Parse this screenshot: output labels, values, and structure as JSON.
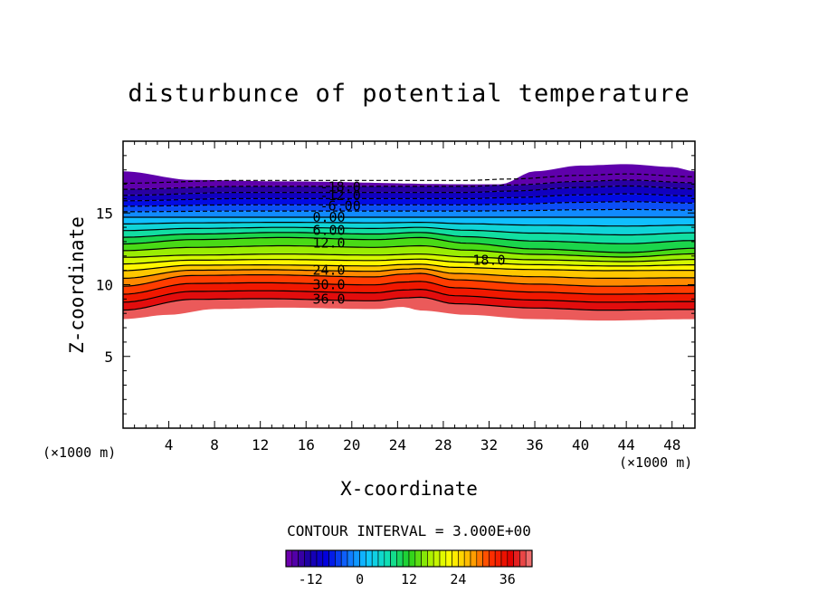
{
  "chart_data": {
    "type": "contour",
    "title": "disturbunce of potential temperature",
    "xlabel": "X-coordinate",
    "ylabel": "Z-coordinate",
    "x_unit": "(×1000 m)",
    "y_unit": "(×1000 m)",
    "xlim": [
      0,
      50
    ],
    "ylim": [
      0,
      20
    ],
    "x_ticks": [
      4,
      8,
      12,
      16,
      20,
      24,
      28,
      32,
      36,
      40,
      44,
      48
    ],
    "y_ticks": [
      5,
      10,
      15
    ],
    "x_tick_labels": [
      "4",
      "8",
      "12",
      "16",
      "20",
      "24",
      "28",
      "32",
      "36",
      "40",
      "44",
      "48"
    ],
    "y_tick_labels": [
      "5",
      "10",
      "15"
    ],
    "contour_interval_text": "CONTOUR INTERVAL = 3.000E+00",
    "contour_interval": 3.0,
    "contour_levels": [
      -18,
      -15,
      -12,
      -9,
      -6,
      -3,
      0,
      3,
      6,
      9,
      12,
      15,
      18,
      21,
      24,
      27,
      30,
      33,
      36,
      39
    ],
    "contour_labels": [
      {
        "text": "-18.0",
        "x": 19,
        "z": 16.8
      },
      {
        "text": "-12.0",
        "x": 19,
        "z": 16.2
      },
      {
        "text": "-6.00",
        "x": 19,
        "z": 15.5
      },
      {
        "text": "0.00",
        "x": 18,
        "z": 14.7
      },
      {
        "text": "6.00",
        "x": 18,
        "z": 13.8
      },
      {
        "text": "12.0",
        "x": 18,
        "z": 12.9
      },
      {
        "text": "18.0",
        "x": 32,
        "z": 11.7
      },
      {
        "text": "24.0",
        "x": 18,
        "z": 11.0
      },
      {
        "text": "30.0",
        "x": 18,
        "z": 10.0
      },
      {
        "text": "36.0",
        "x": 18,
        "z": 9.0
      }
    ],
    "colorbar": {
      "min": -18,
      "max": 42,
      "tick_values": [
        -12,
        0,
        12,
        24,
        36
      ],
      "tick_labels": [
        "-12",
        "0",
        "12",
        "24",
        "36"
      ]
    },
    "colormap": [
      "#7a00b0",
      "#2000a0",
      "#0000e0",
      "#1070ff",
      "#10c8ff",
      "#10e0b0",
      "#20d020",
      "#a8f000",
      "#ffff00",
      "#ffb000",
      "#ff3000",
      "#e00000",
      "#f08080"
    ]
  }
}
